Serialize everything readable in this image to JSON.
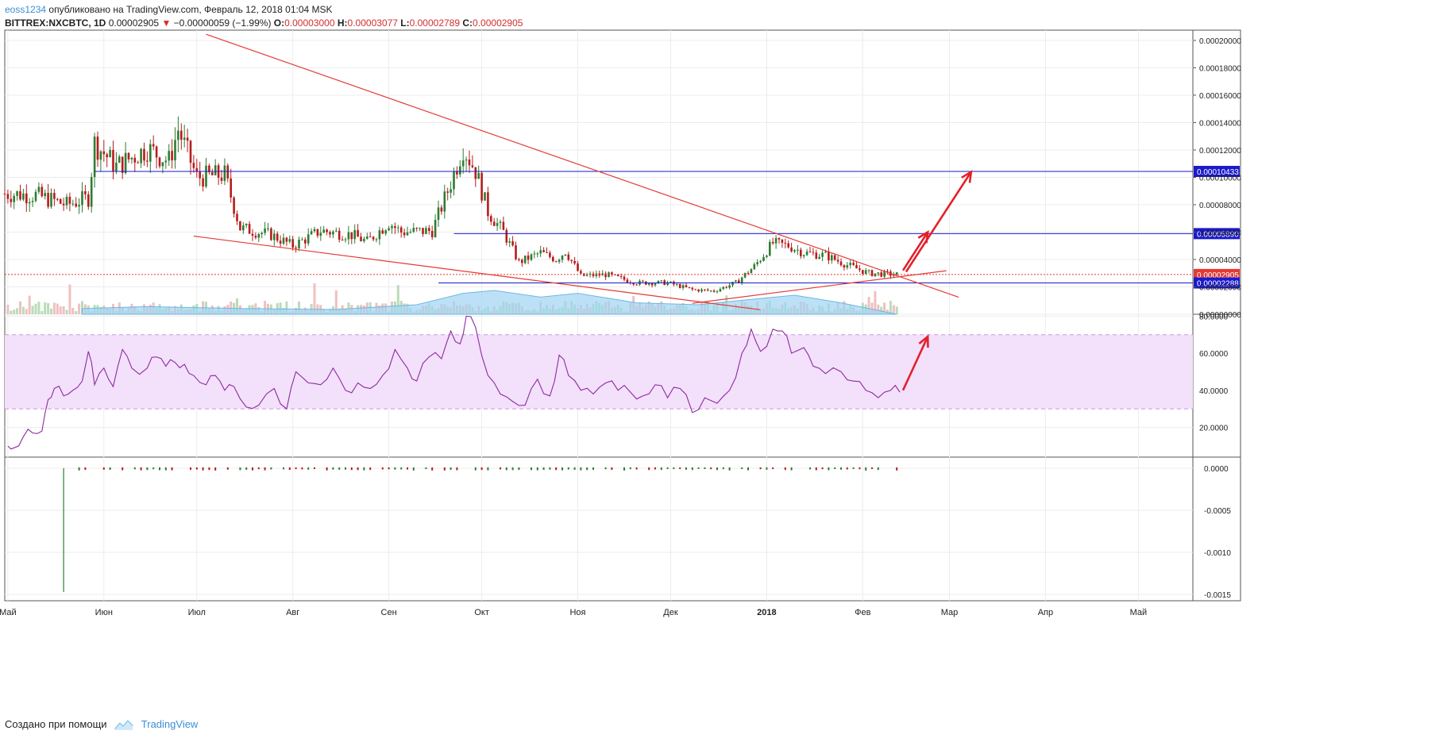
{
  "header": {
    "user": "eoss1234",
    "published": "опубликовано на TradingView.com, Февраль 12, 2018 01:04 MSK"
  },
  "ohlc": {
    "symbol": "BITTREX:NXCBTC, 1D",
    "last": "0.00002905",
    "change_arrow": "▼",
    "change": "−0.00000059 (−1.99%)",
    "o_label": "O:",
    "o": "0.00003000",
    "h_label": "H:",
    "h": "0.00003077",
    "l_label": "L:",
    "l": "0.00002789",
    "c_label": "C:",
    "c": "0.00002905"
  },
  "footer": {
    "created_with": "Создано при помощи",
    "brand": "TradingView"
  },
  "colors": {
    "up": "#2e7d32",
    "down": "#b71c1c",
    "trendline": "#e53935",
    "level_line": "#1a1acd",
    "rsi_line": "#8e2a9e",
    "rsi_band": "#f3e0fb",
    "volume_ma": "#9fd4f2",
    "arrow": "#e3202a"
  },
  "chart_data": [
    {
      "type": "candlestick",
      "title": "BITTREX:NXCBTC, 1D",
      "x_ticks": [
        "Май",
        "Июн",
        "Июл",
        "Авг",
        "Сен",
        "Окт",
        "Ноя",
        "Дек",
        "2018",
        "Фев",
        "Мар",
        "Апр",
        "Май"
      ],
      "x_range": [
        "2017-04-30",
        "2018-05-20"
      ],
      "y_ticks": [
        "0.00020000",
        "0.00018000",
        "0.00016000",
        "0.00014000",
        "0.00012000",
        "0.00010000",
        "0.00008000",
        "0.00006000",
        "0.00004000",
        "0.00002000",
        "0.00000000"
      ],
      "ylim": [
        0,
        0.0002075
      ],
      "price_series": [
        {
          "date": "2017-04-30",
          "value": 8.8e-05
        },
        {
          "date": "2017-05-10",
          "value": 8.7e-05
        },
        {
          "date": "2017-05-20",
          "value": 8e-05
        },
        {
          "date": "2017-05-27",
          "value": 8.5e-05
        },
        {
          "date": "2017-05-29",
          "value": 0.000125
        },
        {
          "date": "2017-06-05",
          "value": 0.000108
        },
        {
          "date": "2017-06-15",
          "value": 0.000121
        },
        {
          "date": "2017-06-22",
          "value": 0.000112
        },
        {
          "date": "2017-06-25",
          "value": 0.000135
        },
        {
          "date": "2017-07-01",
          "value": 0.0001
        },
        {
          "date": "2017-07-10",
          "value": 0.000102
        },
        {
          "date": "2017-07-15",
          "value": 6.3e-05
        },
        {
          "date": "2017-07-25",
          "value": 5.8e-05
        },
        {
          "date": "2017-08-01",
          "value": 5e-05
        },
        {
          "date": "2017-08-10",
          "value": 6.1e-05
        },
        {
          "date": "2017-08-20",
          "value": 5.8e-05
        },
        {
          "date": "2017-08-25",
          "value": 5.3e-05
        },
        {
          "date": "2017-09-01",
          "value": 6.7e-05
        },
        {
          "date": "2017-09-05",
          "value": 6e-05
        },
        {
          "date": "2017-09-15",
          "value": 6.1e-05
        },
        {
          "date": "2017-09-20",
          "value": 9e-05
        },
        {
          "date": "2017-09-25",
          "value": 0.000122
        },
        {
          "date": "2017-09-29",
          "value": 0.000105
        },
        {
          "date": "2017-10-03",
          "value": 7.5e-05
        },
        {
          "date": "2017-10-08",
          "value": 6e-05
        },
        {
          "date": "2017-10-13",
          "value": 3.8e-05
        },
        {
          "date": "2017-10-20",
          "value": 4.5e-05
        },
        {
          "date": "2017-10-25",
          "value": 4e-05
        },
        {
          "date": "2017-10-28",
          "value": 4.6e-05
        },
        {
          "date": "2017-11-02",
          "value": 2.8e-05
        },
        {
          "date": "2017-11-10",
          "value": 2.9e-05
        },
        {
          "date": "2017-11-20",
          "value": 2.3e-05
        },
        {
          "date": "2017-11-30",
          "value": 2.3e-05
        },
        {
          "date": "2017-12-08",
          "value": 1.8e-05
        },
        {
          "date": "2017-12-15",
          "value": 1.7e-05
        },
        {
          "date": "2017-12-22",
          "value": 2.3e-05
        },
        {
          "date": "2017-12-28",
          "value": 3.5e-05
        },
        {
          "date": "2018-01-03",
          "value": 5.2e-05
        },
        {
          "date": "2018-01-08",
          "value": 5e-05
        },
        {
          "date": "2018-01-13",
          "value": 4.5e-05
        },
        {
          "date": "2018-01-20",
          "value": 4.3e-05
        },
        {
          "date": "2018-01-27",
          "value": 3.6e-05
        },
        {
          "date": "2018-02-03",
          "value": 3e-05
        },
        {
          "date": "2018-02-12",
          "value": 2.9e-05
        }
      ],
      "horizontal_levels": [
        {
          "label": "0.00010433",
          "value": 0.00010433,
          "color": "#1a1acd",
          "from": "2017-05-29"
        },
        {
          "label": "0.00005890",
          "value": 5.89e-05,
          "color": "#1a1acd",
          "from": "2017-09-22"
        },
        {
          "label": "0.00002905",
          "value": 2.905e-05,
          "color": "#e53935",
          "from": "2017-04-30",
          "dotted": true
        },
        {
          "label": "0.00002288",
          "value": 2.288e-05,
          "color": "#1a1acd",
          "from": "2017-09-17"
        }
      ],
      "trendlines": [
        {
          "from": {
            "date": "2017-07-04",
            "value": 0.0002045
          },
          "to": {
            "date": "2018-03-04",
            "value": 1.24e-05
          }
        },
        {
          "from": {
            "date": "2017-06-30",
            "value": 5.71e-05
          },
          "to": {
            "date": "2017-12-30",
            "value": 3.3e-06
          }
        },
        {
          "from": {
            "date": "2017-12-08",
            "value": 8e-06
          },
          "to": {
            "date": "2018-02-28",
            "value": 3.18e-05
          }
        }
      ],
      "projection_arrows": [
        {
          "from": {
            "date": "2018-02-14",
            "value": 3.2e-05
          },
          "to": {
            "date": "2018-02-22",
            "value": 6e-05
          }
        },
        {
          "from": {
            "date": "2018-02-15",
            "value": 3.1e-05
          },
          "to": {
            "date": "2018-03-08",
            "value": 0.000104
          }
        }
      ],
      "volume_ma_series": [
        {
          "date": "2017-05-25",
          "value": 0.06
        },
        {
          "date": "2017-06-15",
          "value": 0.08
        },
        {
          "date": "2017-07-15",
          "value": 0.06
        },
        {
          "date": "2017-08-15",
          "value": 0.05
        },
        {
          "date": "2017-09-10",
          "value": 0.1
        },
        {
          "date": "2017-09-25",
          "value": 0.22
        },
        {
          "date": "2017-10-05",
          "value": 0.25
        },
        {
          "date": "2017-10-20",
          "value": 0.18
        },
        {
          "date": "2017-11-01",
          "value": 0.22
        },
        {
          "date": "2017-11-20",
          "value": 0.12
        },
        {
          "date": "2017-12-10",
          "value": 0.1
        },
        {
          "date": "2017-12-25",
          "value": 0.15
        },
        {
          "date": "2018-01-10",
          "value": 0.2
        },
        {
          "date": "2018-01-25",
          "value": 0.12
        },
        {
          "date": "2018-02-12",
          "value": 0.0
        }
      ]
    },
    {
      "type": "line",
      "y_ticks": [
        "80.0000",
        "60.0000",
        "40.0000",
        "20.0000"
      ],
      "ylim": [
        4,
        81
      ],
      "band": [
        30,
        70
      ],
      "series": [
        {
          "values": [
            {
              "date": "2017-05-01",
              "value": 10
            },
            {
              "date": "2017-05-03",
              "value": 9
            },
            {
              "date": "2017-05-06",
              "value": 15
            },
            {
              "date": "2017-05-09",
              "value": 17
            },
            {
              "date": "2017-05-12",
              "value": 18
            },
            {
              "date": "2017-05-14",
              "value": 35
            },
            {
              "date": "2017-05-16",
              "value": 41
            },
            {
              "date": "2017-05-19",
              "value": 37
            },
            {
              "date": "2017-05-22",
              "value": 40
            },
            {
              "date": "2017-05-25",
              "value": 45
            },
            {
              "date": "2017-05-27",
              "value": 61
            },
            {
              "date": "2017-05-29",
              "value": 43
            },
            {
              "date": "2017-06-01",
              "value": 52
            },
            {
              "date": "2017-06-04",
              "value": 42
            },
            {
              "date": "2017-06-07",
              "value": 62
            },
            {
              "date": "2017-06-10",
              "value": 52
            },
            {
              "date": "2017-06-15",
              "value": 52
            },
            {
              "date": "2017-06-18",
              "value": 58
            },
            {
              "date": "2017-06-21",
              "value": 53
            },
            {
              "date": "2017-06-24",
              "value": 55
            },
            {
              "date": "2017-06-27",
              "value": 54
            },
            {
              "date": "2017-06-30",
              "value": 48
            },
            {
              "date": "2017-07-04",
              "value": 43
            },
            {
              "date": "2017-07-07",
              "value": 48
            },
            {
              "date": "2017-07-10",
              "value": 40
            },
            {
              "date": "2017-07-13",
              "value": 42
            },
            {
              "date": "2017-07-17",
              "value": 31
            },
            {
              "date": "2017-07-21",
              "value": 32
            },
            {
              "date": "2017-07-26",
              "value": 41
            },
            {
              "date": "2017-07-30",
              "value": 30
            },
            {
              "date": "2017-08-02",
              "value": 50
            },
            {
              "date": "2017-08-06",
              "value": 44
            },
            {
              "date": "2017-08-10",
              "value": 43
            },
            {
              "date": "2017-08-14",
              "value": 52
            },
            {
              "date": "2017-08-18",
              "value": 40
            },
            {
              "date": "2017-08-22",
              "value": 44
            },
            {
              "date": "2017-08-26",
              "value": 41
            },
            {
              "date": "2017-08-30",
              "value": 48
            },
            {
              "date": "2017-09-03",
              "value": 62
            },
            {
              "date": "2017-09-07",
              "value": 52
            },
            {
              "date": "2017-09-10",
              "value": 45
            },
            {
              "date": "2017-09-14",
              "value": 58
            },
            {
              "date": "2017-09-18",
              "value": 57
            },
            {
              "date": "2017-09-21",
              "value": 72
            },
            {
              "date": "2017-09-24",
              "value": 65
            },
            {
              "date": "2017-09-26",
              "value": 80
            },
            {
              "date": "2017-09-29",
              "value": 74
            },
            {
              "date": "2017-10-03",
              "value": 48
            },
            {
              "date": "2017-10-07",
              "value": 38
            },
            {
              "date": "2017-10-11",
              "value": 34
            },
            {
              "date": "2017-10-15",
              "value": 32
            },
            {
              "date": "2017-10-19",
              "value": 46
            },
            {
              "date": "2017-10-23",
              "value": 37
            },
            {
              "date": "2017-10-26",
              "value": 59
            },
            {
              "date": "2017-10-29",
              "value": 48
            },
            {
              "date": "2017-11-02",
              "value": 40
            },
            {
              "date": "2017-11-06",
              "value": 38
            },
            {
              "date": "2017-11-10",
              "value": 44
            },
            {
              "date": "2017-11-14",
              "value": 40
            },
            {
              "date": "2017-11-18",
              "value": 39
            },
            {
              "date": "2017-11-22",
              "value": 37
            },
            {
              "date": "2017-11-26",
              "value": 43
            },
            {
              "date": "2017-11-30",
              "value": 36
            },
            {
              "date": "2017-12-04",
              "value": 41
            },
            {
              "date": "2017-12-08",
              "value": 28
            },
            {
              "date": "2017-12-12",
              "value": 36
            },
            {
              "date": "2017-12-16",
              "value": 33
            },
            {
              "date": "2017-12-20",
              "value": 40
            },
            {
              "date": "2017-12-24",
              "value": 60
            },
            {
              "date": "2017-12-27",
              "value": 73
            },
            {
              "date": "2017-12-30",
              "value": 61
            },
            {
              "date": "2018-01-03",
              "value": 73
            },
            {
              "date": "2018-01-06",
              "value": 72
            },
            {
              "date": "2018-01-09",
              "value": 60
            },
            {
              "date": "2018-01-13",
              "value": 63
            },
            {
              "date": "2018-01-16",
              "value": 53
            },
            {
              "date": "2018-01-20",
              "value": 49
            },
            {
              "date": "2018-01-25",
              "value": 50
            },
            {
              "date": "2018-01-29",
              "value": 45
            },
            {
              "date": "2018-02-02",
              "value": 40
            },
            {
              "date": "2018-02-06",
              "value": 36
            },
            {
              "date": "2018-02-10",
              "value": 40
            },
            {
              "date": "2018-02-13",
              "value": 39
            }
          ]
        }
      ],
      "projection_arrows": [
        {
          "from": {
            "date": "2018-02-14",
            "value": 40
          },
          "to": {
            "date": "2018-02-22",
            "value": 69
          }
        }
      ]
    },
    {
      "type": "bar",
      "y_ticks": [
        "0.0000",
        "-0.0005",
        "-0.0010",
        "-0.0015"
      ],
      "ylim": [
        -0.00155,
        0.0001
      ],
      "spike": {
        "date": "2017-05-19",
        "value": -0.00147
      }
    }
  ]
}
